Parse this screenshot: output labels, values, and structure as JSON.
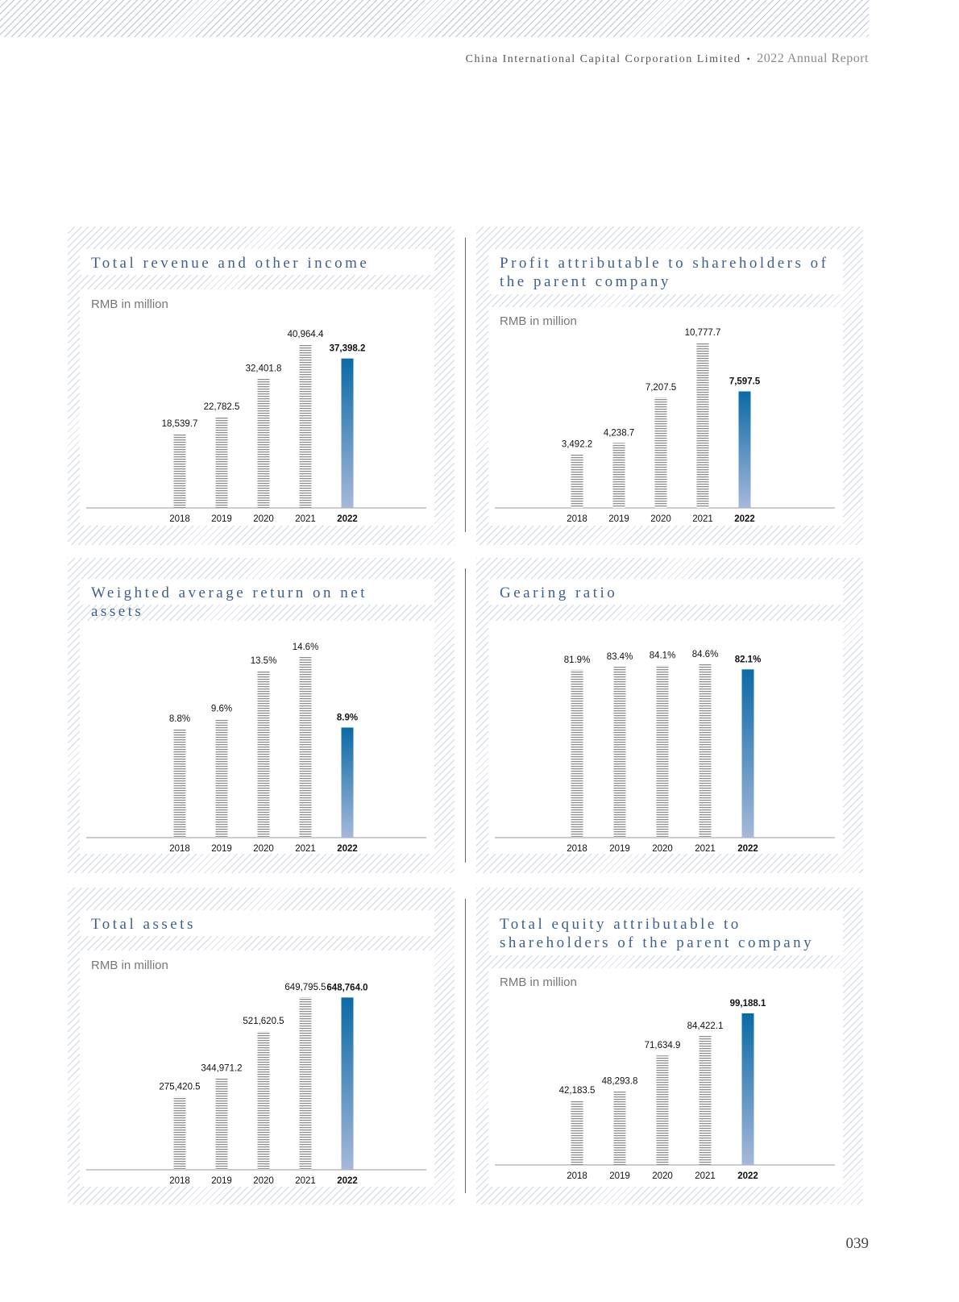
{
  "header": {
    "company": "China International Capital Corporation Limited",
    "separator": "•",
    "report": "2022 Annual Report"
  },
  "page_number": "039",
  "chart_data": [
    {
      "type": "bar",
      "title": "Total revenue and other income",
      "unit": "RMB in million",
      "categories": [
        "2018",
        "2019",
        "2020",
        "2021",
        "2022"
      ],
      "values": [
        18539.7,
        22782.5,
        32401.8,
        40964.4,
        37398.2
      ],
      "labels": [
        "18,539.7",
        "22,782.5",
        "32,401.8",
        "40,964.4",
        "37,398.2"
      ],
      "highlight": "2022",
      "ylim": [
        0,
        40964.4
      ]
    },
    {
      "type": "bar",
      "title": "Profit attributable to shareholders of the parent company",
      "unit": "RMB in million",
      "categories": [
        "2018",
        "2019",
        "2020",
        "2021",
        "2022"
      ],
      "values": [
        3492.2,
        4238.7,
        7207.5,
        10777.7,
        7597.5
      ],
      "labels": [
        "3,492.2",
        "4,238.7",
        "7,207.5",
        "10,777.7",
        "7,597.5"
      ],
      "highlight": "2022",
      "ylim": [
        0,
        10777.7
      ]
    },
    {
      "type": "bar",
      "title": "Weighted average return on net assets",
      "unit": "",
      "categories": [
        "2018",
        "2019",
        "2020",
        "2021",
        "2022"
      ],
      "values": [
        8.8,
        9.6,
        13.5,
        14.6,
        8.9
      ],
      "labels": [
        "8.8%",
        "9.6%",
        "13.5%",
        "14.6%",
        "8.9%"
      ],
      "highlight": "2022",
      "ylim": [
        0,
        14.6
      ]
    },
    {
      "type": "bar",
      "title": "Gearing ratio",
      "unit": "",
      "categories": [
        "2018",
        "2019",
        "2020",
        "2021",
        "2022"
      ],
      "values": [
        81.9,
        83.4,
        84.1,
        84.6,
        82.1
      ],
      "labels": [
        "81.9%",
        "83.4%",
        "84.1%",
        "84.6%",
        "82.1%"
      ],
      "highlight": "2022",
      "ylim": [
        0,
        84.6
      ]
    },
    {
      "type": "bar",
      "title": "Total assets",
      "unit": "RMB in million",
      "categories": [
        "2018",
        "2019",
        "2020",
        "2021",
        "2022"
      ],
      "values": [
        275420.5,
        344971.2,
        521620.5,
        649795.5,
        648764.0
      ],
      "labels": [
        "275,420.5",
        "344,971.2",
        "521,620.5",
        "649,795.5",
        "648,764.0"
      ],
      "highlight": "2022",
      "ylim": [
        0,
        649795.5
      ]
    },
    {
      "type": "bar",
      "title": "Total equity attributable to shareholders of the parent company",
      "unit": "RMB in million",
      "categories": [
        "2018",
        "2019",
        "2020",
        "2021",
        "2022"
      ],
      "values": [
        42183.5,
        48293.8,
        71634.9,
        84422.1,
        99188.1
      ],
      "labels": [
        "42,183.5",
        "48,293.8",
        "71,634.9",
        "84,422.1",
        "99,188.1"
      ],
      "highlight": "2022",
      "ylim": [
        0,
        99188.1
      ]
    }
  ],
  "colors": {
    "accent_top": "#0b6aa6",
    "accent_bottom": "#a6b8da",
    "title": "#3f5f8c"
  }
}
